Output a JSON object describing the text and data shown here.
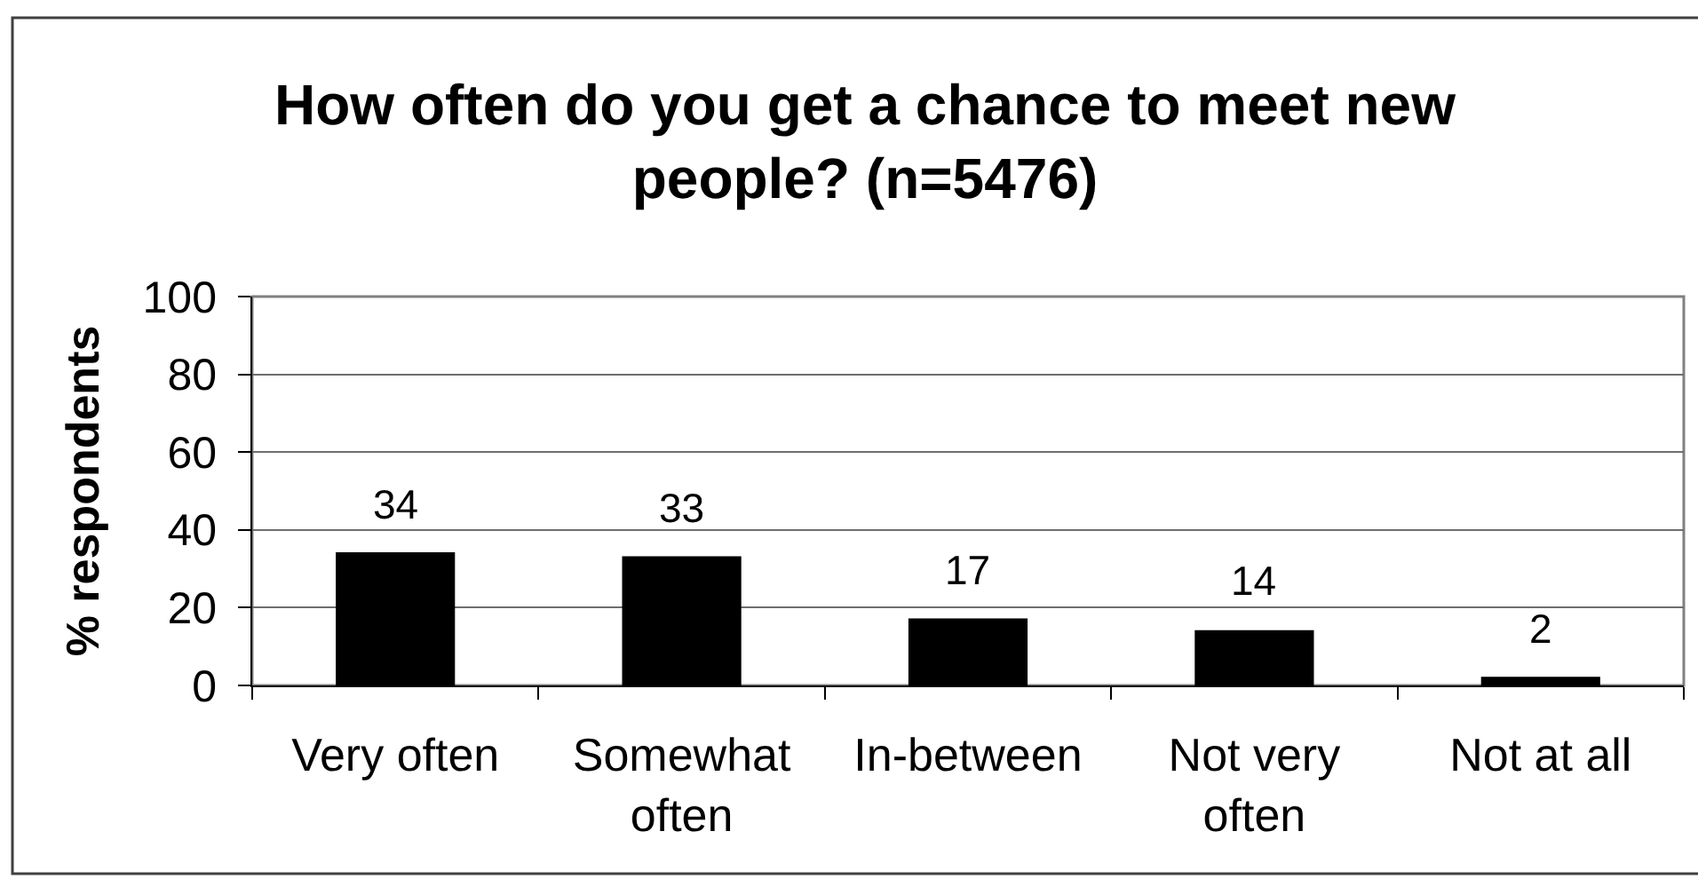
{
  "chart_data": {
    "type": "bar",
    "title": "How often do you get a chance to meet new people? (n=5476)",
    "ylabel": "% respondents",
    "categories": [
      "Very often",
      "Somewhat often",
      "In-between",
      "Not very often",
      "Not at all"
    ],
    "values": [
      34,
      33,
      17,
      14,
      2
    ],
    "color": "#000000",
    "ylim": [
      0,
      100
    ],
    "yticks": [
      0,
      20,
      40,
      60,
      80,
      100
    ],
    "grid": "y",
    "data_labels": true
  }
}
